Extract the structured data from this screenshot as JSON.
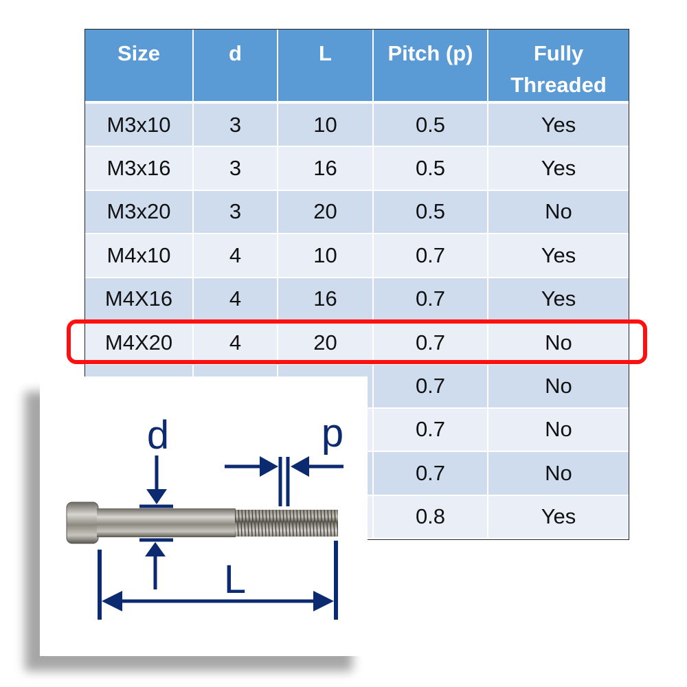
{
  "table": {
    "headers": [
      "Size",
      "d",
      "L",
      "Pitch (p)",
      "Fully Threaded"
    ],
    "rows": [
      [
        "M3x10",
        "3",
        "10",
        "0.5",
        "Yes"
      ],
      [
        "M3x16",
        "3",
        "16",
        "0.5",
        "Yes"
      ],
      [
        "M3x20",
        "3",
        "20",
        "0.5",
        "No"
      ],
      [
        "M4x10",
        "4",
        "10",
        "0.7",
        "Yes"
      ],
      [
        "M4X16",
        "4",
        "16",
        "0.7",
        "Yes"
      ],
      [
        "M4X20",
        "4",
        "20",
        "0.7",
        "No"
      ],
      [
        "",
        "",
        "",
        "0.7",
        "No"
      ],
      [
        "",
        "",
        "",
        "0.7",
        "No"
      ],
      [
        "",
        "",
        "",
        "0.7",
        "No"
      ],
      [
        "",
        "",
        "",
        "0.8",
        "Yes"
      ]
    ],
    "highlighted_row": "M4X20"
  },
  "diagram": {
    "labels": {
      "diameter": "d",
      "pitch": "p",
      "length": "L"
    }
  },
  "colors": {
    "header": "#5b9bd5",
    "row_odd": "#cfdcee",
    "row_even": "#e9eef7",
    "highlight": "#ff1010",
    "dimension": "#0b2a6f"
  }
}
